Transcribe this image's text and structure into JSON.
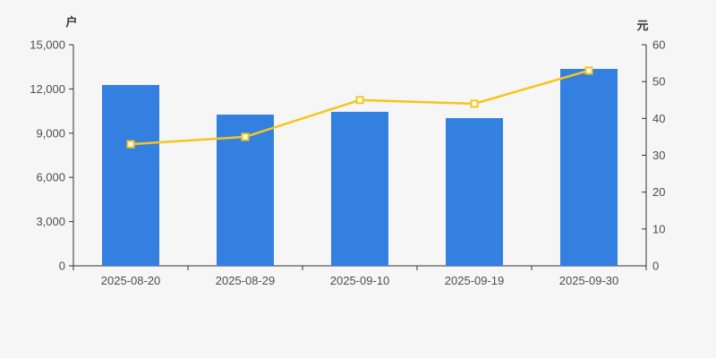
{
  "colors": {
    "background": "#f6f6f6",
    "bar": "#3380e0",
    "line": "#f6c51e",
    "marker_fill": "#ffffff",
    "axis": "#333333",
    "tick_label": "#4d4d4d"
  },
  "chart_data": {
    "type": "combo",
    "title": "",
    "categories": [
      "2025-08-20",
      "2025-08-29",
      "2025-09-10",
      "2025-09-19",
      "2025-09-30"
    ],
    "series": [
      {
        "name": "户",
        "type": "bar",
        "axis": "left",
        "color": "#3380e0",
        "values": [
          12270,
          10260,
          10450,
          10020,
          13360
        ]
      },
      {
        "name": "元",
        "type": "line",
        "axis": "right",
        "color": "#f6c51e",
        "marker": "square",
        "marker_fill": "#ffffff",
        "values": [
          33,
          35,
          45,
          44,
          53
        ]
      }
    ],
    "left_axis": {
      "name": "户",
      "min": 0,
      "max": 15000,
      "step": 3000,
      "tick_labels": [
        "0",
        "3,000",
        "6,000",
        "9,000",
        "12,000",
        "15,000"
      ]
    },
    "right_axis": {
      "name": "元",
      "min": 0,
      "max": 60,
      "step": 10,
      "tick_labels": [
        "0",
        "10",
        "20",
        "30",
        "40",
        "50",
        "60"
      ]
    },
    "grid": false,
    "legend": false
  }
}
